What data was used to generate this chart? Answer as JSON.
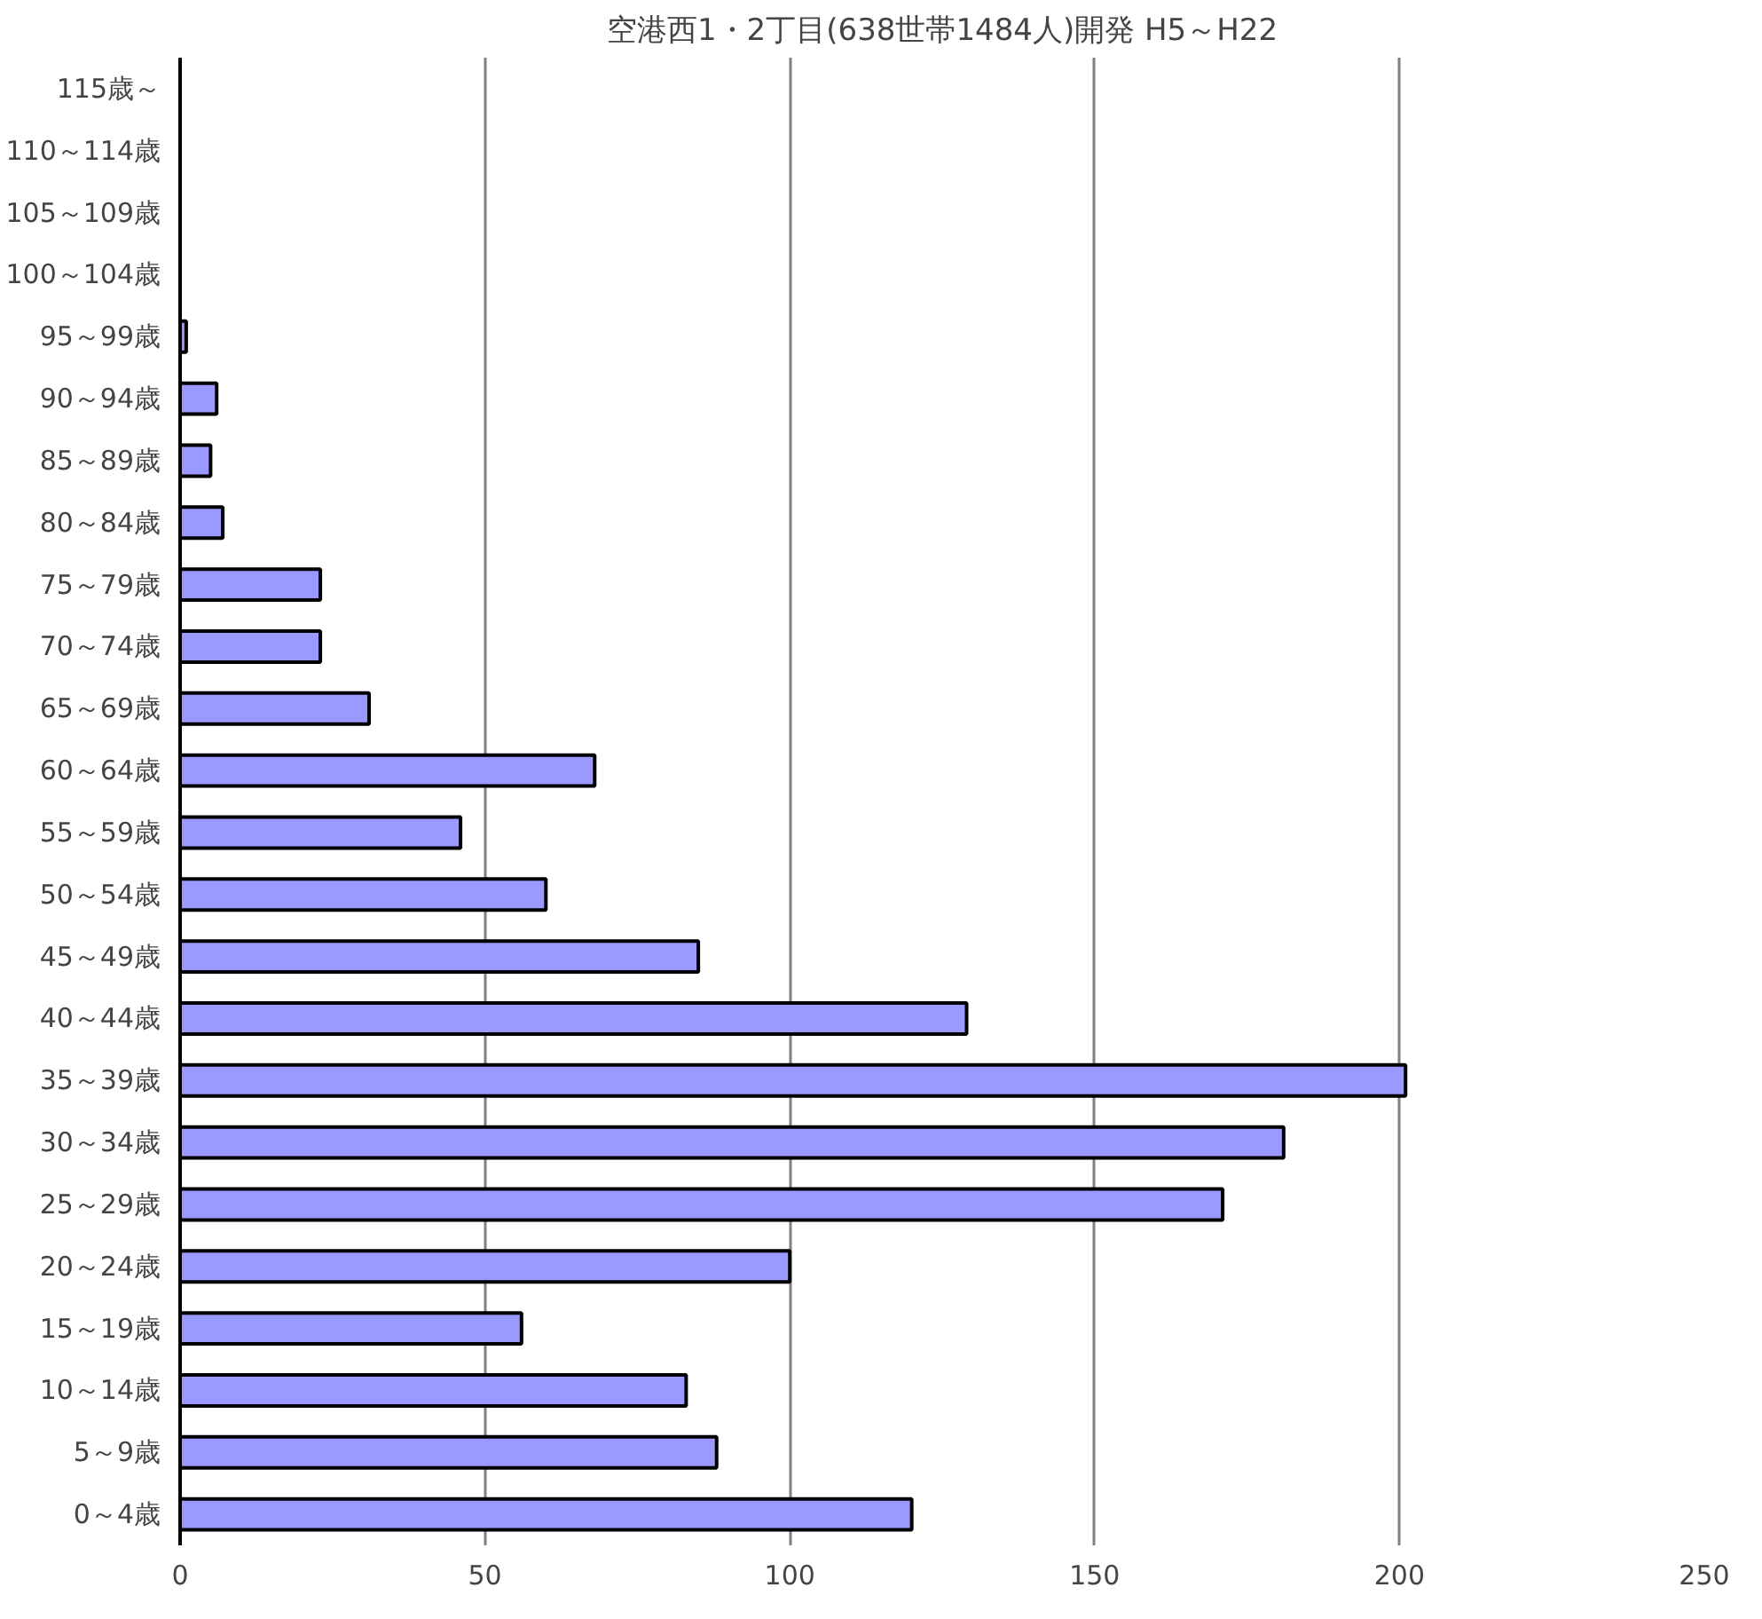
{
  "chart_data": {
    "type": "bar",
    "orientation": "horizontal",
    "title": "空港西1・2丁目(638世帯1484人)開発 H5～H22",
    "categories": [
      "115歳～",
      "110～114歳",
      "105～109歳",
      "100～104歳",
      "95～99歳",
      "90～94歳",
      "85～89歳",
      "80～84歳",
      "75～79歳",
      "70～74歳",
      "65～69歳",
      "60～64歳",
      "55～59歳",
      "50～54歳",
      "45～49歳",
      "40～44歳",
      "35～39歳",
      "30～34歳",
      "25～29歳",
      "20～24歳",
      "15～19歳",
      "10～14歳",
      "5～9歳",
      "0～4歳"
    ],
    "values": [
      0,
      0,
      0,
      0,
      1,
      6,
      5,
      7,
      23,
      23,
      31,
      68,
      46,
      60,
      85,
      129,
      201,
      181,
      171,
      100,
      56,
      83,
      88,
      120
    ],
    "color": "#9999ff",
    "xlim": [
      0,
      250
    ],
    "xticks": [
      0,
      50,
      100,
      150,
      200,
      250
    ],
    "grid": "x"
  }
}
